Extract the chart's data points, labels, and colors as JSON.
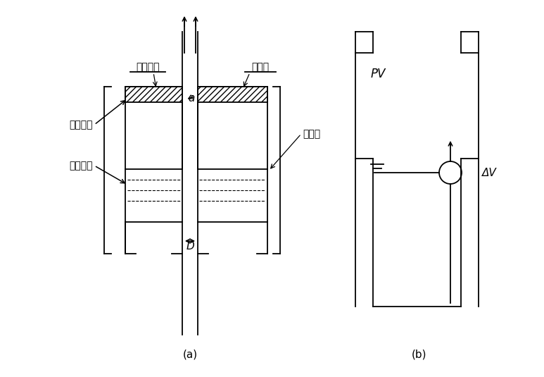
{
  "bg_color": "#ffffff",
  "line_color": "#000000",
  "label_a": "(a)",
  "label_b": "(b)",
  "text_chujia": "出气狭缝",
  "text_wuxiao": "无效体积",
  "text_youxiao": "有效体积",
  "text_a": "a",
  "text_D": "D",
  "text_shuifeng": "水封板",
  "text_yiliu": "溢流板",
  "text_PV": "PV",
  "text_DeltaV": "ΔV"
}
